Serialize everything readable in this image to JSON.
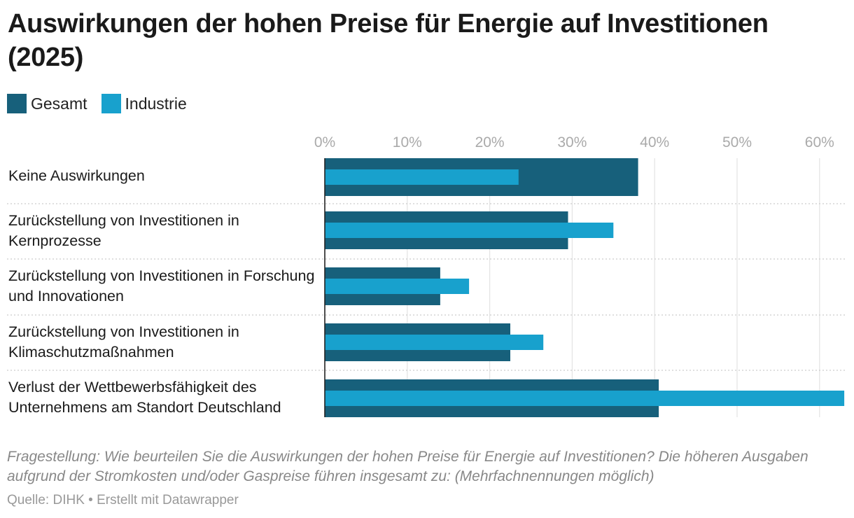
{
  "title": "Auswirkungen der hohen Preise für Energie auf Investitionen (2025)",
  "legend": [
    {
      "name": "Gesamt",
      "color": "#17607b"
    },
    {
      "name": "Industrie",
      "color": "#18a1cd"
    }
  ],
  "chart_data": {
    "type": "bar",
    "orientation": "horizontal",
    "title": "Auswirkungen der hohen Preise für Energie auf Investitionen (2025)",
    "categories": [
      "Keine Auswirkungen",
      "Zurückstellung von Investitionen in Kernprozesse",
      "Zurückstellung von Investitionen in Forschung und Innovationen",
      "Zurückstellung von Investitionen in Klimaschutzmaßnahmen",
      "Verlust der Wettbewerbsfähigkeit des Unternehmens am Standort Deutschland"
    ],
    "series": [
      {
        "name": "Gesamt",
        "color": "#17607b",
        "values": [
          38,
          29.5,
          14,
          22.5,
          40.5
        ]
      },
      {
        "name": "Industrie",
        "color": "#18a1cd",
        "values": [
          23.5,
          35,
          17.5,
          26.5,
          63
        ]
      }
    ],
    "x_ticks": [
      "0%",
      "10%",
      "20%",
      "30%",
      "40%",
      "50%",
      "60%"
    ],
    "xlim": [
      0,
      63
    ],
    "grid": true,
    "legend_position": "top-left"
  },
  "footnote": "Fragestellung: Wie beurteilen Sie die Auswirkungen der hohen Preise für Energie auf Investitionen? Die höheren Ausgaben aufgrund der Stromkosten und/oder Gaspreise führen insgesamt zu: (Mehrfachnennungen möglich)",
  "source": "Quelle: DIHK • Erstellt mit Datawrapper"
}
